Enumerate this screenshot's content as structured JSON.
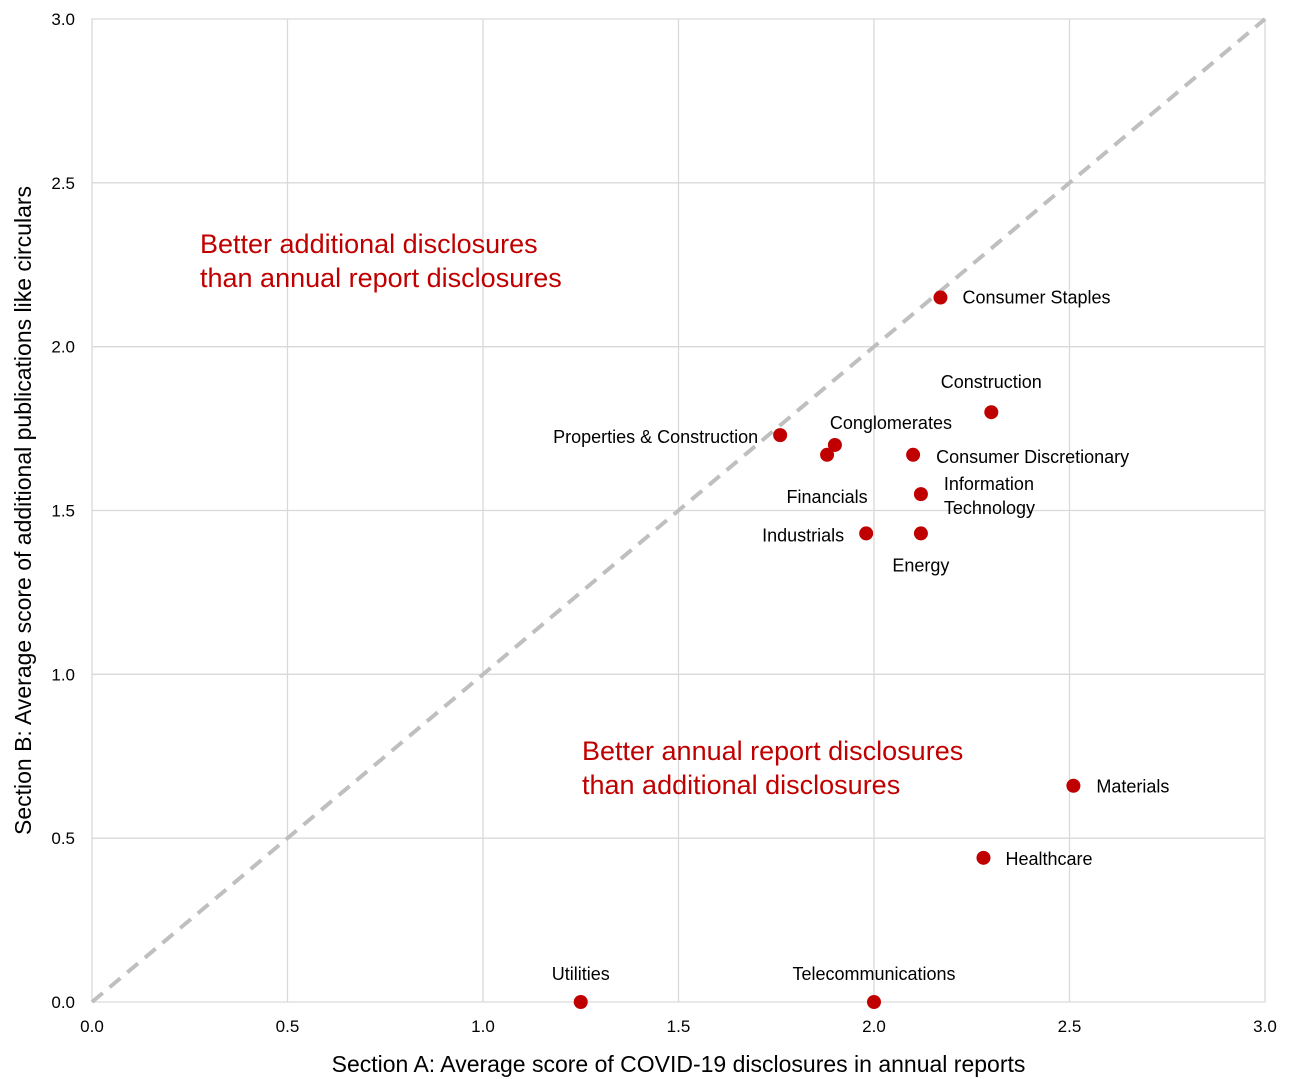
{
  "chart_data": {
    "type": "scatter",
    "title": "",
    "xlabel": "Section A: Average score of COVID-19 disclosures in annual reports",
    "ylabel": "Section B: Average score of additional publications like circulars",
    "xlim": [
      0,
      3
    ],
    "ylim": [
      0,
      3
    ],
    "x_ticks": [
      "0.0",
      "0.5",
      "1.0",
      "1.5",
      "2.0",
      "2.5",
      "3.0"
    ],
    "y_ticks": [
      "0.0",
      "0.5",
      "1.0",
      "1.5",
      "2.0",
      "2.5",
      "3.0"
    ],
    "grid": true,
    "reference_line": {
      "style": "dashed",
      "from": [
        0,
        0
      ],
      "to": [
        3,
        3
      ],
      "color": "#bfbfbf"
    },
    "marker_color": "#c00000",
    "annotation_color": "#c00000",
    "annotations": [
      {
        "lines": [
          "Better additional disclosures",
          "than annual report disclosures"
        ]
      },
      {
        "lines": [
          "Better annual report disclosures",
          "than additional disclosures"
        ]
      }
    ],
    "points": [
      {
        "label": [
          "Consumer Staples"
        ],
        "x": 2.17,
        "y": 2.15
      },
      {
        "label": [
          "Construction"
        ],
        "x": 2.3,
        "y": 1.8
      },
      {
        "label": [
          "Properties & Construction"
        ],
        "x": 1.76,
        "y": 1.73
      },
      {
        "label": [
          "Conglomerates"
        ],
        "x": 1.9,
        "y": 1.7
      },
      {
        "label": [
          "Financials"
        ],
        "x": 1.88,
        "y": 1.67
      },
      {
        "label": [
          "Consumer Discretionary"
        ],
        "x": 2.1,
        "y": 1.67
      },
      {
        "label": [
          "Information",
          "Technology"
        ],
        "x": 2.12,
        "y": 1.55
      },
      {
        "label": [
          "Industrials"
        ],
        "x": 1.98,
        "y": 1.43
      },
      {
        "label": [
          "Energy"
        ],
        "x": 2.12,
        "y": 1.43
      },
      {
        "label": [
          "Materials"
        ],
        "x": 2.51,
        "y": 0.66
      },
      {
        "label": [
          "Healthcare"
        ],
        "x": 2.28,
        "y": 0.44
      },
      {
        "label": [
          "Utilities"
        ],
        "x": 1.25,
        "y": 0.0
      },
      {
        "label": [
          "Telecommunications"
        ],
        "x": 2.0,
        "y": 0.0
      }
    ]
  }
}
